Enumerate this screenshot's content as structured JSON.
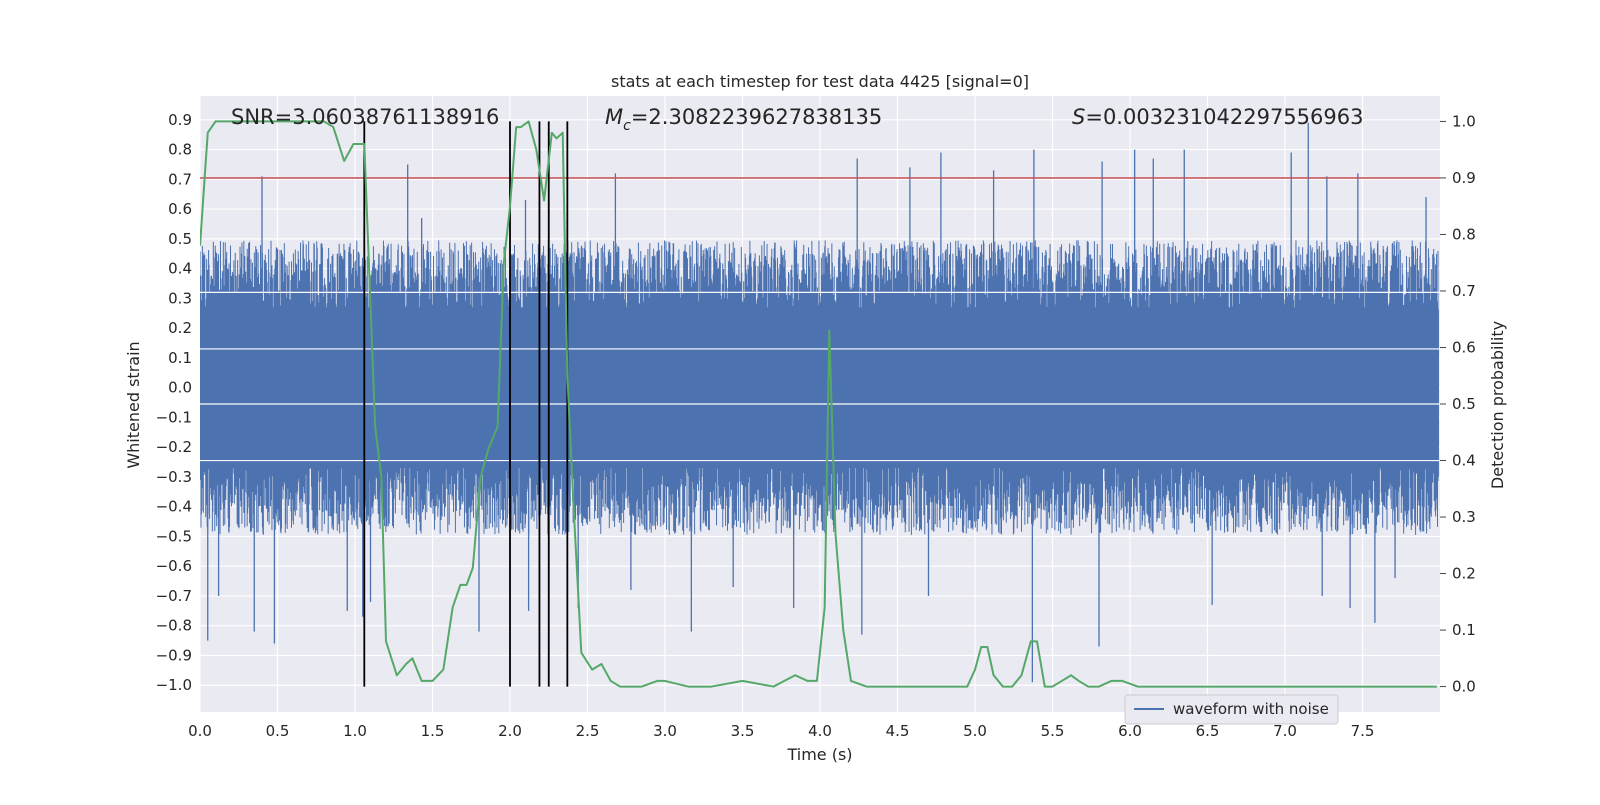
{
  "chart_data": {
    "type": "line",
    "title": "stats at each timestep for test data 4425 [signal=0]",
    "xlabel": "Time (s)",
    "ylabel_left": "Whitened strain",
    "ylabel_right": "Detection probability",
    "xlim": [
      0.0,
      8.0
    ],
    "ylim_left": [
      -1.09,
      0.98
    ],
    "ylim_right": [
      -0.045,
      1.045
    ],
    "x_ticks": [
      "0.0",
      "0.5",
      "1.0",
      "1.5",
      "2.0",
      "2.5",
      "3.0",
      "3.5",
      "4.0",
      "4.5",
      "5.0",
      "5.5",
      "6.0",
      "6.5",
      "7.0",
      "7.5"
    ],
    "y_ticks_left": [
      "0.9",
      "0.8",
      "0.7",
      "0.6",
      "0.5",
      "0.4",
      "0.3",
      "0.2",
      "0.1",
      "0.0",
      "−0.1",
      "−0.2",
      "−0.3",
      "−0.4",
      "−0.5",
      "−0.6",
      "−0.7",
      "−0.8",
      "−0.9",
      "−1.0"
    ],
    "y_ticks_right": [
      "1.0",
      "0.9",
      "0.8",
      "0.7",
      "0.6",
      "0.5",
      "0.4",
      "0.3",
      "0.2",
      "0.1",
      "0.0"
    ],
    "grid": true,
    "legend": {
      "location": "lower-right",
      "entries": [
        "waveform with noise"
      ]
    },
    "annotations": {
      "snr": "SNR=3.06038761138916",
      "mc_symbol": "M",
      "mc_subscript": "c",
      "mc_value": "=2.3082239627838135",
      "s_symbol": "S",
      "s_value": "=0.003231042297556963"
    },
    "threshold": {
      "value": 0.9,
      "axis": "right",
      "color": "#c44e52"
    },
    "trigger_times": [
      1.06,
      2.0,
      2.19,
      2.25,
      2.37
    ],
    "waveform": {
      "name": "waveform with noise",
      "color": "#4c72b0",
      "t_start": 0.0,
      "t_end": 7.99,
      "envelope_upper_typ": 0.45,
      "envelope_lower_typ": -0.45,
      "peaks": [
        [
          0.4,
          0.71
        ],
        [
          1.34,
          0.75
        ],
        [
          1.43,
          0.57
        ],
        [
          2.1,
          0.63
        ],
        [
          2.68,
          0.72
        ],
        [
          4.24,
          0.77
        ],
        [
          4.58,
          0.74
        ],
        [
          4.78,
          0.79
        ],
        [
          5.12,
          0.73
        ],
        [
          5.38,
          0.8
        ],
        [
          5.82,
          0.76
        ],
        [
          6.03,
          0.8
        ],
        [
          6.15,
          0.77
        ],
        [
          6.35,
          0.8
        ],
        [
          7.04,
          0.79
        ],
        [
          7.15,
          0.89
        ],
        [
          7.27,
          0.71
        ],
        [
          7.47,
          0.72
        ],
        [
          7.91,
          0.64
        ]
      ],
      "troughs": [
        [
          0.05,
          -0.85
        ],
        [
          0.12,
          -0.7
        ],
        [
          0.35,
          -0.82
        ],
        [
          0.48,
          -0.86
        ],
        [
          0.95,
          -0.75
        ],
        [
          1.05,
          -0.77
        ],
        [
          1.1,
          -0.72
        ],
        [
          1.8,
          -0.82
        ],
        [
          2.12,
          -0.75
        ],
        [
          2.44,
          -0.74
        ],
        [
          2.78,
          -0.68
        ],
        [
          3.17,
          -0.82
        ],
        [
          3.44,
          -0.67
        ],
        [
          3.83,
          -0.74
        ],
        [
          4.27,
          -0.83
        ],
        [
          4.7,
          -0.7
        ],
        [
          5.37,
          -0.99
        ],
        [
          5.8,
          -0.87
        ],
        [
          6.53,
          -0.73
        ],
        [
          7.24,
          -0.7
        ],
        [
          7.42,
          -0.74
        ],
        [
          7.58,
          -0.79
        ],
        [
          7.71,
          -0.64
        ]
      ]
    },
    "detection_probability": {
      "color": "#55a868",
      "t": [
        0.0,
        0.05,
        0.1,
        0.2,
        0.3,
        0.4,
        0.5,
        0.6,
        0.7,
        0.8,
        0.86,
        0.93,
        0.99,
        1.04,
        1.06,
        1.13,
        1.17,
        1.2,
        1.27,
        1.33,
        1.37,
        1.43,
        1.5,
        1.57,
        1.63,
        1.68,
        1.72,
        1.76,
        1.81,
        1.86,
        1.92,
        1.96,
        2.0,
        2.04,
        2.07,
        2.12,
        2.17,
        2.22,
        2.27,
        2.3,
        2.34,
        2.37,
        2.41,
        2.46,
        2.53,
        2.59,
        2.65,
        2.71,
        2.78,
        2.85,
        2.95,
        3.0,
        3.15,
        3.3,
        3.5,
        3.7,
        3.77,
        3.84,
        3.92,
        3.98,
        4.03,
        4.06,
        4.1,
        4.15,
        4.2,
        4.3,
        4.5,
        4.7,
        4.95,
        5.0,
        5.04,
        5.08,
        5.12,
        5.18,
        5.24,
        5.3,
        5.36,
        5.4,
        5.45,
        5.5,
        5.56,
        5.62,
        5.67,
        5.73,
        5.8,
        5.88,
        5.95,
        6.05,
        6.3,
        6.5,
        6.6,
        6.8,
        7.0,
        7.2,
        7.4,
        7.6,
        7.8,
        7.98
      ],
      "p": [
        0.78,
        0.98,
        1.0,
        1.0,
        1.0,
        1.0,
        1.0,
        1.0,
        1.0,
        1.0,
        0.99,
        0.93,
        0.96,
        0.96,
        0.96,
        0.46,
        0.37,
        0.08,
        0.02,
        0.04,
        0.05,
        0.01,
        0.01,
        0.03,
        0.14,
        0.18,
        0.18,
        0.21,
        0.37,
        0.42,
        0.46,
        0.75,
        0.85,
        0.99,
        0.99,
        1.0,
        0.95,
        0.86,
        0.98,
        0.97,
        0.98,
        0.55,
        0.32,
        0.06,
        0.03,
        0.04,
        0.01,
        0.0,
        0.0,
        0.0,
        0.01,
        0.01,
        0.0,
        0.0,
        0.01,
        0.0,
        0.01,
        0.02,
        0.01,
        0.01,
        0.14,
        0.63,
        0.27,
        0.1,
        0.01,
        0.0,
        0.0,
        0.0,
        0.0,
        0.03,
        0.07,
        0.07,
        0.02,
        0.0,
        0.0,
        0.02,
        0.08,
        0.08,
        0.0,
        0.0,
        0.01,
        0.02,
        0.01,
        0.0,
        0.0,
        0.01,
        0.01,
        0.0,
        0.0,
        0.0,
        0.0,
        0.0,
        0.0,
        0.0,
        0.0,
        0.0,
        0.0,
        0.0
      ]
    }
  }
}
